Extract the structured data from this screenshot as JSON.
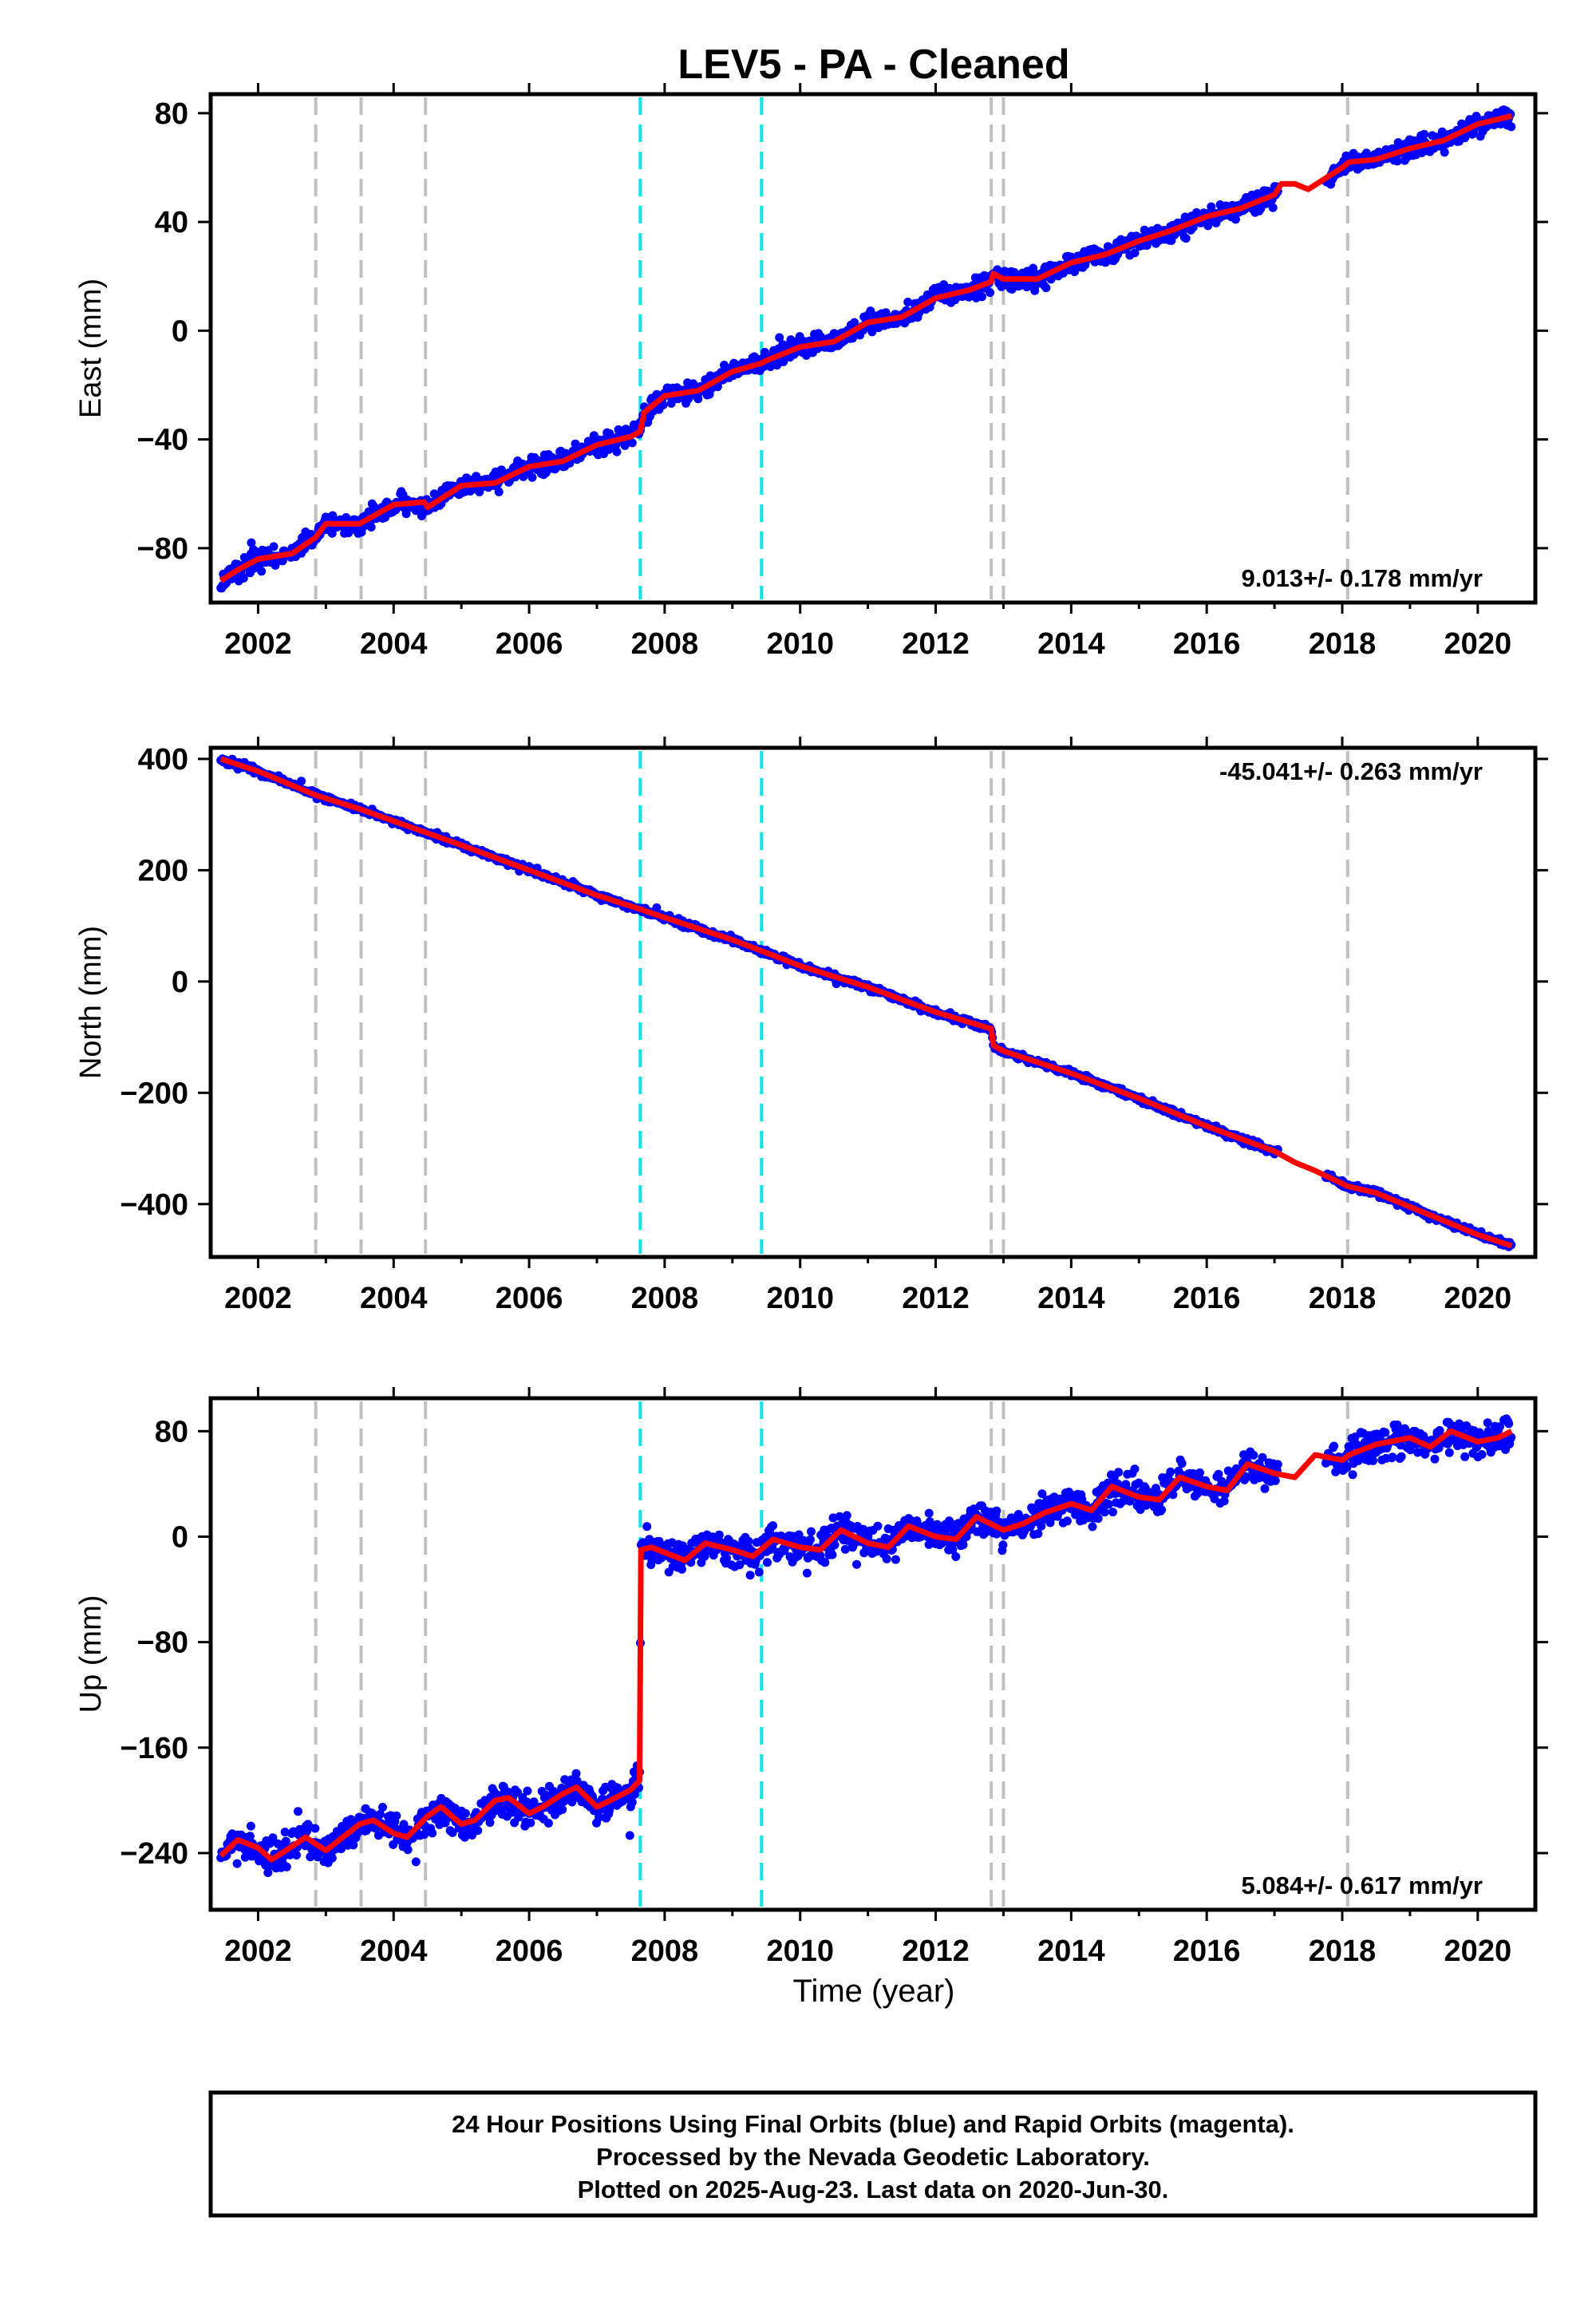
{
  "title": "LEV5  - PA - Cleaned",
  "xlabel": "Time (year)",
  "colors": {
    "final_orbits": "#0000ff",
    "model": "#ff0000",
    "offset_equipment": "#c0c0c0",
    "offset_earthquake": "#00e6e6",
    "frame": "#000000"
  },
  "footer": {
    "line1": "24 Hour Positions Using Final Orbits (blue) and Rapid Orbits (magenta).",
    "line2": "Processed by the Nevada Geodetic Laboratory.",
    "line3": "Plotted on 2025-Aug-23. Last data on 2020-Jun-30."
  },
  "chart_data": [
    {
      "type": "scatter",
      "panel": "East",
      "ylabel": "East (mm)",
      "xlim": [
        2001.3,
        2020.85
      ],
      "ylim": [
        -100,
        87
      ],
      "xticks": [
        "2002",
        "2004",
        "2006",
        "2008",
        "2010",
        "2012",
        "2014",
        "2016",
        "2018",
        "2020"
      ],
      "yticks": [
        "80",
        "40",
        "0",
        "-40",
        "-80"
      ],
      "rate_text": "9.013+/- 0.178 mm/yr",
      "rate_position": "bottom-right",
      "grid": false,
      "offsets_equipment": [
        2002.85,
        2003.52,
        2004.47,
        2012.82,
        2013.0,
        2018.08
      ],
      "offsets_earthquake": [
        2007.64,
        2009.43
      ],
      "model": {
        "x": [
          2001.45,
          2001.7,
          2002.0,
          2002.5,
          2002.85,
          2003.0,
          2003.5,
          2004.0,
          2004.45,
          2004.5,
          2005.0,
          2005.5,
          2006.0,
          2006.5,
          2007.0,
          2007.5,
          2007.64,
          2007.7,
          2008.0,
          2008.5,
          2009.0,
          2009.43,
          2009.5,
          2010.0,
          2010.5,
          2011.0,
          2011.5,
          2012.0,
          2012.5,
          2012.82,
          2012.85,
          2013.0,
          2013.5,
          2014.0,
          2014.5,
          2015.0,
          2015.5,
          2016.0,
          2016.5,
          2017.0,
          2017.1,
          2017.3,
          2017.5,
          2018.0,
          2018.1,
          2018.5,
          2019.0,
          2019.5,
          2020.0,
          2020.5
        ],
        "y": [
          -92,
          -88,
          -84,
          -82,
          -76,
          -71,
          -71,
          -64,
          -63,
          -65,
          -57,
          -56,
          -50,
          -48,
          -42,
          -39,
          -37,
          -30,
          -24,
          -22,
          -15,
          -12,
          -11,
          -6,
          -4,
          3,
          5,
          12,
          15,
          18,
          21,
          19,
          19,
          25,
          28,
          33,
          37,
          42,
          45,
          50,
          54,
          54,
          52,
          60,
          62,
          63,
          67,
          70,
          76,
          79
        ]
      },
      "points_note_free": true,
      "points": {
        "x": [
          2001.5,
          2001.7,
          2001.9,
          2002.1,
          2002.3,
          2002.5,
          2002.7,
          2002.9,
          2003.1,
          2003.3,
          2003.5,
          2003.7,
          2003.9,
          2004.1,
          2004.3,
          2004.6,
          2004.8,
          2005.0,
          2005.3,
          2005.6,
          2005.9,
          2006.2,
          2006.5,
          2006.8,
          2007.1,
          2007.4,
          2007.7,
          2008.0,
          2008.3,
          2008.6,
          2008.9,
          2009.2,
          2009.6,
          2009.9,
          2010.2,
          2010.5,
          2010.8,
          2011.1,
          2011.4,
          2011.7,
          2012.0,
          2012.3,
          2012.6,
          2013.1,
          2013.4,
          2013.7,
          2014.0,
          2014.3,
          2014.6,
          2014.9,
          2015.2,
          2015.5,
          2015.8,
          2016.1,
          2016.4,
          2016.7,
          2017.0,
          2018.2,
          2018.5,
          2018.8,
          2019.1,
          2019.4,
          2019.7,
          2020.0,
          2020.3
        ],
        "y": [
          -91,
          -86,
          -78,
          -84,
          -83,
          -80,
          -74,
          -72,
          -68,
          -70,
          -70,
          -67,
          -63,
          -60,
          -64,
          -60,
          -57,
          -56,
          -55,
          -52,
          -49,
          -48,
          -47,
          -44,
          -41,
          -38,
          -28,
          -23,
          -22,
          -18,
          -15,
          -12,
          -10,
          -6,
          -4,
          -1,
          3,
          5,
          6,
          10,
          13,
          16,
          18,
          19,
          20,
          22,
          25,
          27,
          28,
          32,
          35,
          37,
          38,
          42,
          45,
          46,
          50,
          61,
          63,
          64,
          68,
          70,
          72,
          76,
          79
        ]
      }
    },
    {
      "type": "scatter",
      "panel": "North",
      "ylabel": "North (mm)",
      "xlim": [
        2001.3,
        2020.85
      ],
      "ylim": [
        -495,
        420
      ],
      "xticks": [
        "2002",
        "2004",
        "2006",
        "2008",
        "2010",
        "2012",
        "2014",
        "2016",
        "2018",
        "2020"
      ],
      "yticks": [
        "400",
        "200",
        "0",
        "-200",
        "-400"
      ],
      "rate_text": "-45.041+/- 0.263 mm/yr",
      "rate_position": "top-right",
      "grid": false,
      "offsets_equipment": [
        2002.85,
        2003.52,
        2004.47,
        2012.82,
        2013.0,
        2018.08
      ],
      "offsets_earthquake": [
        2007.64,
        2009.43
      ],
      "model": {
        "x": [
          2001.45,
          2002.0,
          2002.85,
          2003.5,
          2004.47,
          2005.0,
          2006.0,
          2007.0,
          2007.64,
          2008.0,
          2009.0,
          2009.43,
          2010.0,
          2011.0,
          2012.0,
          2012.82,
          2012.85,
          2013.0,
          2014.0,
          2015.0,
          2016.0,
          2017.0,
          2017.3,
          2017.6,
          2018.08,
          2018.5,
          2019.0,
          2020.0,
          2020.5
        ],
        "y": [
          400,
          378,
          335,
          310,
          268,
          245,
          200,
          155,
          130,
          115,
          75,
          55,
          28,
          -10,
          -55,
          -85,
          -115,
          -125,
          -165,
          -210,
          -260,
          -305,
          -325,
          -340,
          -368,
          -380,
          -405,
          -455,
          -475
        ]
      },
      "points": {
        "x": [
          2001.5,
          2002.2,
          2003.0,
          2003.8,
          2004.6,
          2005.4,
          2006.2,
          2007.0,
          2007.8,
          2008.6,
          2009.4,
          2010.2,
          2011.0,
          2011.8,
          2012.6,
          2013.2,
          2014.0,
          2014.8,
          2015.6,
          2016.4,
          2017.0,
          2018.2,
          2019.0,
          2019.8,
          2020.4
        ],
        "y": [
          398,
          370,
          330,
          295,
          262,
          228,
          192,
          155,
          122,
          90,
          55,
          18,
          -12,
          -48,
          -78,
          -130,
          -168,
          -205,
          -245,
          -280,
          -310,
          -370,
          -405,
          -440,
          -470
        ]
      }
    },
    {
      "type": "scatter",
      "panel": "Up",
      "ylabel": "Up (mm)",
      "xlim": [
        2001.3,
        2020.85
      ],
      "ylim": [
        -283,
        105
      ],
      "xticks": [
        "2002",
        "2004",
        "2006",
        "2008",
        "2010",
        "2012",
        "2014",
        "2016",
        "2018",
        "2020"
      ],
      "yticks": [
        "80",
        "0",
        "-80",
        "-160",
        "-240"
      ],
      "rate_text": "5.084+/- 0.617 mm/yr",
      "rate_position": "bottom-right",
      "grid": false,
      "offsets_equipment": [
        2002.85,
        2003.52,
        2004.47,
        2012.82,
        2013.0,
        2018.08
      ],
      "offsets_earthquake": [
        2007.64,
        2009.43
      ],
      "model": {
        "x": [
          2001.45,
          2001.7,
          2002.0,
          2002.2,
          2002.5,
          2002.7,
          2003.0,
          2003.2,
          2003.5,
          2003.7,
          2004.0,
          2004.2,
          2004.5,
          2004.7,
          2005.0,
          2005.2,
          2005.5,
          2005.7,
          2006.0,
          2006.2,
          2006.5,
          2006.7,
          2007.0,
          2007.2,
          2007.5,
          2007.63,
          2007.65,
          2007.8,
          2008.0,
          2008.3,
          2008.6,
          2009.0,
          2009.3,
          2009.6,
          2010.0,
          2010.3,
          2010.6,
          2011.0,
          2011.3,
          2011.6,
          2012.0,
          2012.3,
          2012.6,
          2013.0,
          2013.3,
          2013.6,
          2014.0,
          2014.3,
          2014.6,
          2015.0,
          2015.3,
          2015.6,
          2016.0,
          2016.3,
          2016.6,
          2017.0,
          2017.3,
          2017.6,
          2018.0,
          2018.1,
          2018.5,
          2019.0,
          2019.3,
          2019.6,
          2020.0,
          2020.3,
          2020.5
        ],
        "y": [
          -242,
          -230,
          -236,
          -245,
          -235,
          -228,
          -238,
          -230,
          -218,
          -215,
          -225,
          -228,
          -212,
          -205,
          -218,
          -215,
          -200,
          -198,
          -210,
          -205,
          -195,
          -190,
          -205,
          -200,
          -192,
          -185,
          -10,
          -8,
          -12,
          -18,
          -5,
          -10,
          -15,
          -2,
          -8,
          -10,
          5,
          -5,
          -8,
          8,
          0,
          -2,
          15,
          5,
          10,
          18,
          25,
          20,
          38,
          30,
          28,
          45,
          38,
          35,
          55,
          48,
          45,
          62,
          58,
          62,
          70,
          75,
          68,
          80,
          72,
          75,
          80
        ]
      },
      "points": {
        "x": [
          2001.5,
          2001.8,
          2002.1,
          2002.4,
          2002.7,
          2003.0,
          2003.3,
          2003.6,
          2003.9,
          2004.2,
          2004.5,
          2004.8,
          2005.1,
          2005.4,
          2005.7,
          2006.0,
          2006.3,
          2006.6,
          2006.9,
          2007.2,
          2007.5,
          2007.7,
          2008.0,
          2008.3,
          2008.6,
          2008.9,
          2009.2,
          2009.5,
          2009.8,
          2010.1,
          2010.4,
          2010.7,
          2011.0,
          2011.3,
          2011.6,
          2011.9,
          2012.2,
          2012.5,
          2012.9,
          2013.2,
          2013.5,
          2013.8,
          2014.1,
          2014.4,
          2014.7,
          2015.0,
          2015.3,
          2015.6,
          2015.9,
          2016.2,
          2016.5,
          2016.8,
          2017.0,
          2017.8,
          2018.2,
          2018.5,
          2018.8,
          2019.1,
          2019.4,
          2019.7,
          2020.0,
          2020.3
        ],
        "y": [
          -240,
          -228,
          -248,
          -238,
          -225,
          -240,
          -232,
          -215,
          -220,
          -230,
          -210,
          -208,
          -220,
          -205,
          -200,
          -210,
          -200,
          -192,
          -205,
          -198,
          -195,
          -5,
          -10,
          -15,
          -3,
          -8,
          -18,
          -5,
          -2,
          -8,
          5,
          -3,
          -8,
          6,
          2,
          -6,
          12,
          5,
          2,
          8,
          14,
          28,
          22,
          20,
          35,
          28,
          32,
          42,
          35,
          38,
          50,
          45,
          55,
          60,
          62,
          68,
          72,
          70,
          78,
          74,
          78,
          76
        ]
      }
    }
  ]
}
